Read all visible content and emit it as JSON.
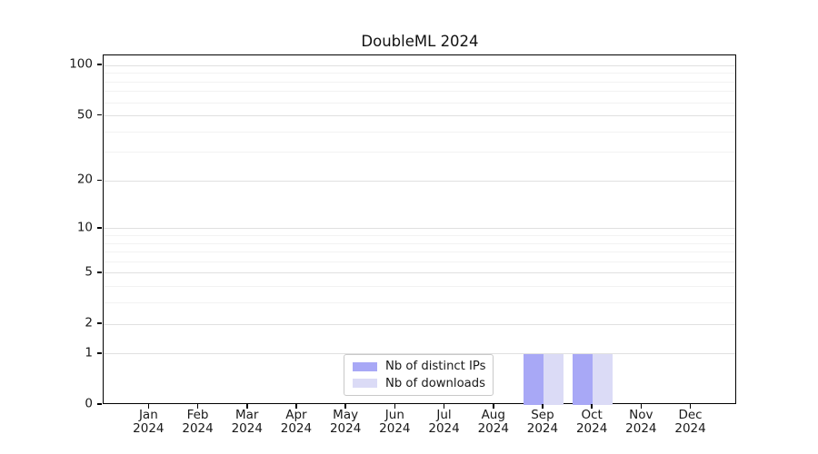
{
  "title": "DoubleML 2024",
  "legend": {
    "items": [
      {
        "label": "Nb of distinct IPs",
        "color": "#a8a8f6"
      },
      {
        "label": "Nb of downloads",
        "color": "#dbdbf6"
      }
    ]
  },
  "chart_data": {
    "type": "bar",
    "title": "DoubleML 2024",
    "categories": [
      "Jan 2024",
      "Feb 2024",
      "Mar 2024",
      "Apr 2024",
      "May 2024",
      "Jun 2024",
      "Jul 2024",
      "Aug 2024",
      "Sep 2024",
      "Oct 2024",
      "Nov 2024",
      "Dec 2024"
    ],
    "series": [
      {
        "name": "Nb of distinct IPs",
        "color": "#a8a8f6",
        "values": [
          0,
          0,
          0,
          0,
          0,
          0,
          0,
          0,
          1,
          1,
          0,
          0
        ]
      },
      {
        "name": "Nb of downloads",
        "color": "#dbdbf6",
        "values": [
          0,
          0,
          0,
          0,
          0,
          0,
          0,
          0,
          1,
          1,
          0,
          0
        ]
      }
    ],
    "yscale": "log1p",
    "ylim": [
      0,
      115
    ],
    "y_major_ticks": [
      100,
      50,
      20,
      10,
      5,
      2,
      1,
      0
    ],
    "y_minor_ticks": [
      90,
      80,
      70,
      60,
      40,
      30,
      9,
      8,
      7,
      6,
      4,
      3
    ],
    "grid": "horizontal",
    "legend_position": "lower center",
    "colors": {
      "major_grid": "#e0e0e0",
      "minor_grid": "#f2f2f2",
      "spine": "#000000",
      "text": "#191919"
    }
  }
}
